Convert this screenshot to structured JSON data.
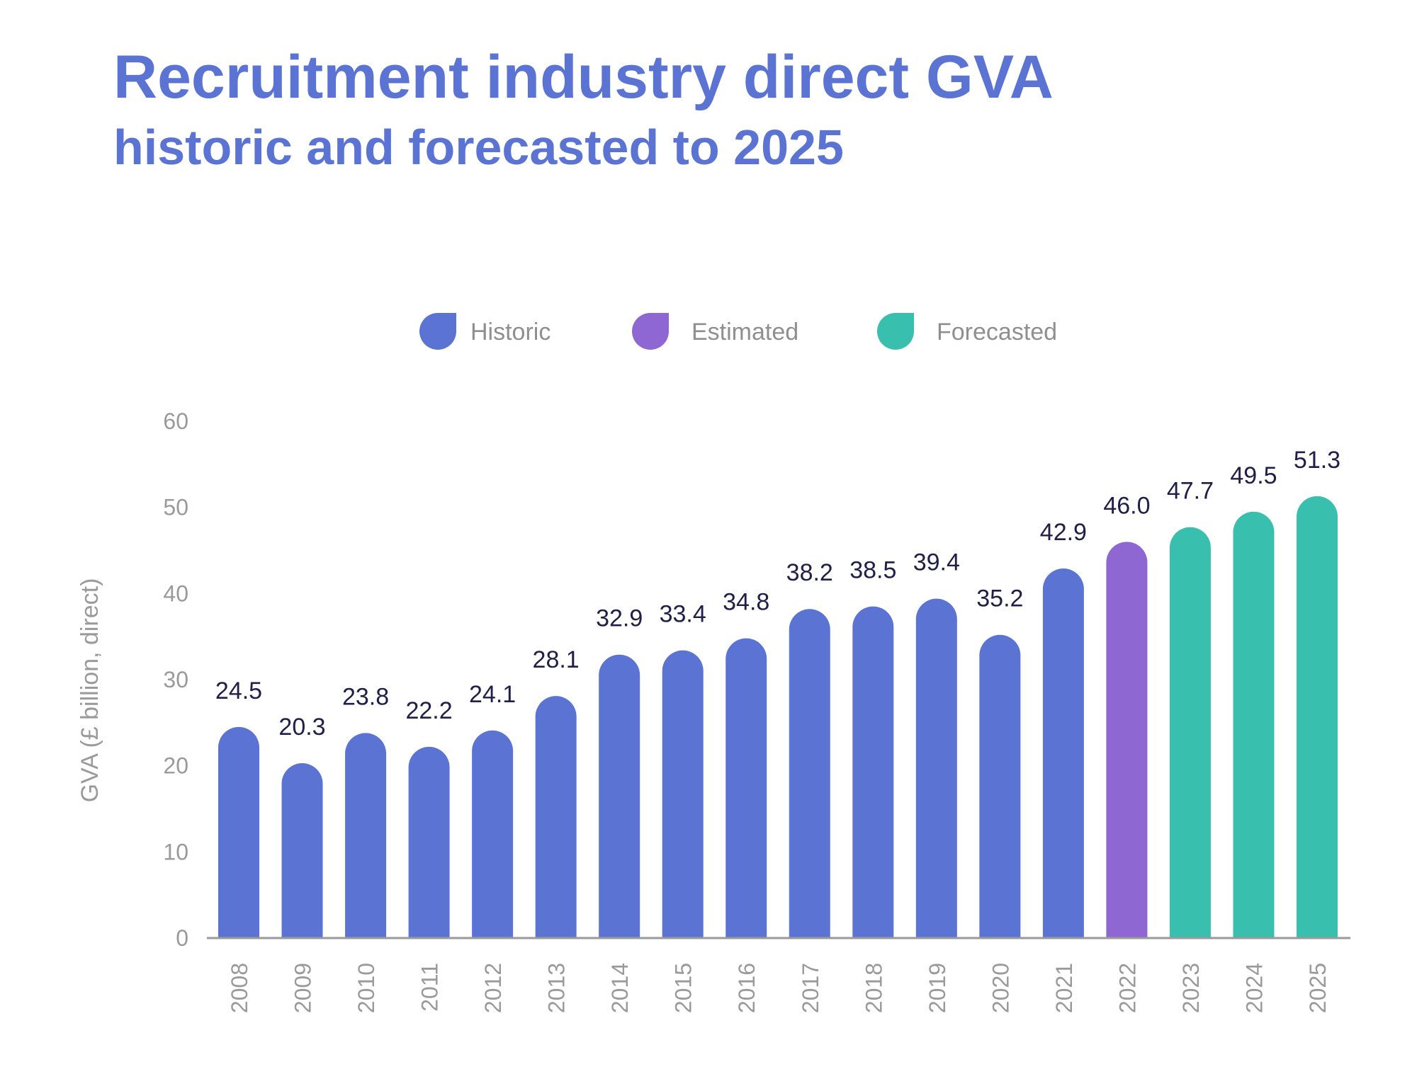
{
  "title": "Recruitment industry direct GVA",
  "subtitle": "historic and forecasted to 2025",
  "colors": {
    "title": "#5b74d4",
    "historic": "#5b74d4",
    "estimated": "#8f67d3",
    "forecasted": "#38bfae",
    "axis": "#9a9a9a",
    "labels": "#1f1f4a",
    "legend_text": "#8f8f8f"
  },
  "legend": [
    {
      "label": "Historic",
      "color": "#5b74d4",
      "icon": "droplet-icon"
    },
    {
      "label": "Estimated",
      "color": "#8f67d3",
      "icon": "droplet-icon"
    },
    {
      "label": "Forecasted",
      "color": "#38bfae",
      "icon": "droplet-icon"
    }
  ],
  "chart_data": {
    "type": "bar",
    "title": "Recruitment industry direct GVA",
    "subtitle": "historic and forecasted to 2025",
    "xlabel": "",
    "ylabel": "GVA (£ billion, direct)",
    "ylim": [
      0,
      60
    ],
    "yticks": [
      0,
      10,
      20,
      30,
      40,
      50,
      60
    ],
    "grid": false,
    "legend_position": "top-center",
    "categories": [
      "2008",
      "2009",
      "2010",
      "2011",
      "2012",
      "2013",
      "2014",
      "2015",
      "2016",
      "2017",
      "2018",
      "2019",
      "2020",
      "2021",
      "2022",
      "2023",
      "2024",
      "2025"
    ],
    "values": [
      24.5,
      20.3,
      23.8,
      22.2,
      24.1,
      28.1,
      32.9,
      33.4,
      34.8,
      38.2,
      38.5,
      39.4,
      35.2,
      42.9,
      46.0,
      47.7,
      49.5,
      51.3
    ],
    "value_labels": [
      "24.5",
      "20.3",
      "23.8",
      "22.2",
      "24.1",
      "28.1",
      "32.9",
      "33.4",
      "34.8",
      "38.2",
      "38.5",
      "39.4",
      "35.2",
      "42.9",
      "46.0",
      "47.7",
      "49.5",
      "51.3"
    ],
    "bar_types": [
      "Historic",
      "Historic",
      "Historic",
      "Historic",
      "Historic",
      "Historic",
      "Historic",
      "Historic",
      "Historic",
      "Historic",
      "Historic",
      "Historic",
      "Historic",
      "Historic",
      "Estimated",
      "Forecasted",
      "Forecasted",
      "Forecasted"
    ],
    "series": [
      {
        "name": "Historic",
        "color": "#5b74d4"
      },
      {
        "name": "Estimated",
        "color": "#8f67d3"
      },
      {
        "name": "Forecasted",
        "color": "#38bfae"
      }
    ]
  }
}
